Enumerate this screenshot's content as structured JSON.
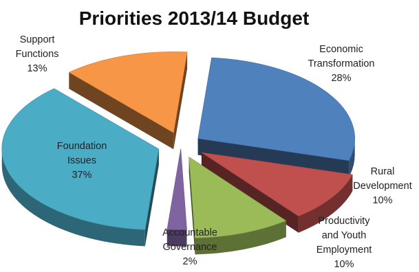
{
  "chart_data": {
    "type": "pie",
    "title": "Priorities 2013/14 Budget",
    "slices": [
      {
        "label_lines": [
          "Economic",
          "Transformation"
        ],
        "value_label": "28%",
        "value": 28,
        "color": "#4F81BD"
      },
      {
        "label_lines": [
          "Rural",
          "Development"
        ],
        "value_label": "10%",
        "value": 10,
        "color": "#C0504D"
      },
      {
        "label_lines": [
          "Productivity",
          "and Youth",
          "Employment"
        ],
        "value_label": "10%",
        "value": 10,
        "color": "#9BBB59"
      },
      {
        "label_lines": [
          "Accountable",
          "Governance"
        ],
        "value_label": "2%",
        "value": 2,
        "color": "#8064A2"
      },
      {
        "label_lines": [
          "Foundation",
          "Issues"
        ],
        "value_label": "37%",
        "value": 37,
        "color": "#4BACC6"
      },
      {
        "label_lines": [
          "Support",
          "Functions"
        ],
        "value_label": "13%",
        "value": 13,
        "color": "#F79646"
      }
    ],
    "legend": "none",
    "exploded": true,
    "style": "3d"
  }
}
